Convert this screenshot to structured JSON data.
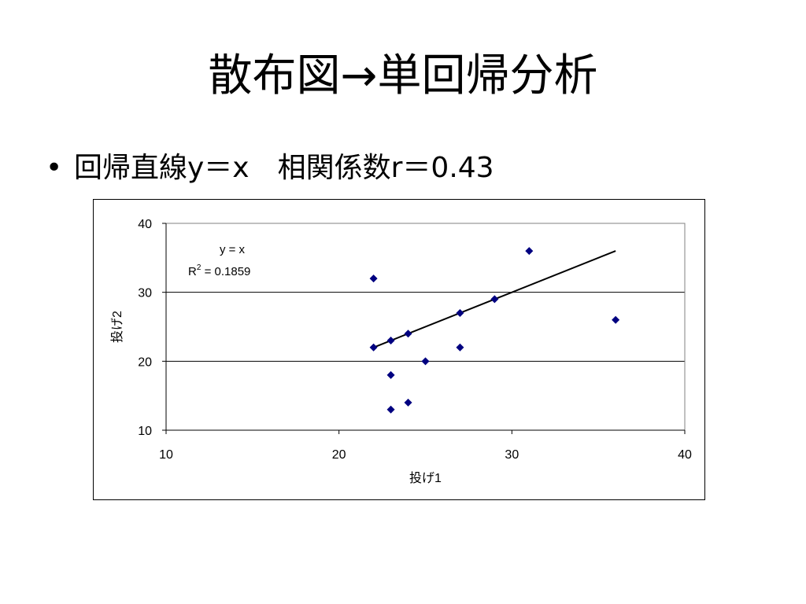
{
  "slide": {
    "title": "散布図→単回帰分析",
    "bullet_marker": "•",
    "bullet_text": "回帰直線y＝x　相関係数r＝0.43"
  },
  "colors": {
    "marker": "#000080",
    "trendline": "#000000",
    "gridline": "#000000"
  },
  "chart_data": {
    "type": "scatter",
    "xlabel": "投げ1",
    "ylabel": "投げ2",
    "xlim": [
      10,
      40
    ],
    "ylim": [
      10,
      40
    ],
    "xticks": [
      10,
      20,
      30,
      40
    ],
    "yticks": [
      10,
      20,
      30,
      40
    ],
    "grid": "horizontal major gridlines",
    "legend": "none",
    "marker_shape": "diamond",
    "points": [
      {
        "x": 22,
        "y": 32
      },
      {
        "x": 22,
        "y": 22
      },
      {
        "x": 23,
        "y": 23
      },
      {
        "x": 23,
        "y": 18
      },
      {
        "x": 23,
        "y": 13
      },
      {
        "x": 24,
        "y": 24
      },
      {
        "x": 24,
        "y": 14
      },
      {
        "x": 25,
        "y": 20
      },
      {
        "x": 27,
        "y": 27
      },
      {
        "x": 27,
        "y": 22
      },
      {
        "x": 29,
        "y": 29
      },
      {
        "x": 31,
        "y": 36
      },
      {
        "x": 36,
        "y": 26
      }
    ],
    "trendline": {
      "x_range": [
        22,
        36
      ],
      "slope": 1,
      "intercept": 0
    },
    "annotations": [
      {
        "text": "y = x"
      },
      {
        "text": "R",
        "superscript": "2",
        "suffix": " = 0.1859"
      }
    ]
  }
}
